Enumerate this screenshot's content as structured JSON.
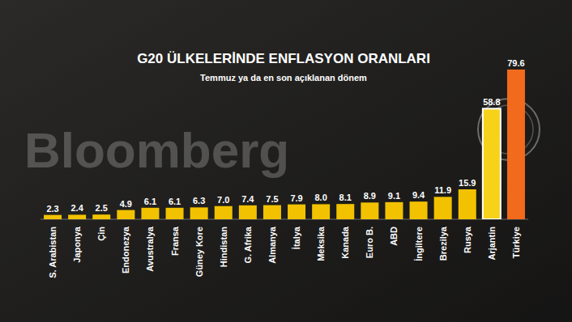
{
  "chart_data": {
    "type": "bar",
    "title": "G20 ÜLKELERİNDE ENFLASYON ORANLARI",
    "subtitle": "Temmuz ya da en son açıklanan dönem",
    "annotations": [
      "Bloomberg"
    ],
    "categories": [
      "S. Arabistan",
      "Japonya",
      "Çin",
      "Endonezya",
      "Avustralya",
      "Fransa",
      "Güney Kore",
      "Hindistan",
      "G. Afrika",
      "Almanya",
      "İtalya",
      "Meksika",
      "Kanada",
      "Euro B.",
      "ABD",
      "İngiltere",
      "Brezilya",
      "Rusya",
      "Arjantin",
      "Türkiye"
    ],
    "values": [
      2.3,
      2.4,
      2.5,
      4.9,
      6.1,
      6.1,
      6.3,
      7.0,
      7.4,
      7.5,
      7.9,
      8.0,
      8.1,
      8.9,
      9.1,
      9.4,
      11.9,
      15.9,
      58.8,
      79.6
    ],
    "value_labels": [
      "2.3",
      "2.4",
      "2.5",
      "4.9",
      "6.1",
      "6.1",
      "6.3",
      "7.0",
      "7.4",
      "7.5",
      "7.9",
      "8.0",
      "8.1",
      "8.9",
      "9.1",
      "9.4",
      "11.9",
      "15.9",
      "58.8",
      "79.6"
    ],
    "colors": [
      "#f2c200",
      "#f2c200",
      "#f2c200",
      "#f2c200",
      "#f2c200",
      "#f2c200",
      "#f2c200",
      "#f2c200",
      "#f2c200",
      "#f2c200",
      "#f2c200",
      "#f2c200",
      "#f2c200",
      "#f2c200",
      "#f2c200",
      "#f2c200",
      "#f2c200",
      "#f2c200",
      "#f7d21a",
      "#f26a1b"
    ],
    "ylim": [
      0,
      80
    ],
    "data_labels": true,
    "tick_labels": "x",
    "grid": false
  }
}
